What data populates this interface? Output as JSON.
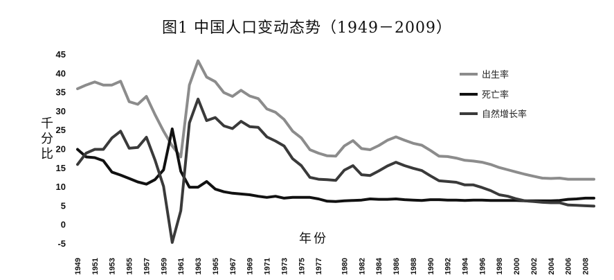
{
  "chart_data": {
    "type": "line",
    "title": "图1  中国人口变动态势（1949－2009）",
    "ylabel": "千分比",
    "xlabel": "年份",
    "ylim": [
      -5,
      45
    ],
    "yticks": [
      -5,
      0,
      5,
      10,
      15,
      20,
      25,
      30,
      35,
      40,
      45
    ],
    "x_tick_labels": [
      "1949",
      "1951",
      "1953",
      "1955",
      "1957",
      "1959",
      "1961",
      "1963",
      "1965",
      "1967",
      "1969",
      "1971",
      "1973",
      "1975",
      "1977",
      "1980",
      "1982",
      "1984",
      "1986",
      "1988",
      "1990",
      "1992",
      "1994",
      "1996",
      "1998",
      "2000",
      "2002",
      "2004",
      "2006",
      "2008"
    ],
    "legend_position": "right",
    "x": [
      1949,
      1950,
      1951,
      1952,
      1953,
      1954,
      1955,
      1956,
      1957,
      1958,
      1959,
      1960,
      1961,
      1962,
      1963,
      1964,
      1965,
      1966,
      1967,
      1968,
      1969,
      1970,
      1971,
      1972,
      1973,
      1974,
      1975,
      1976,
      1977,
      1978,
      1979,
      1980,
      1981,
      1982,
      1983,
      1984,
      1985,
      1986,
      1987,
      1988,
      1989,
      1990,
      1991,
      1992,
      1993,
      1994,
      1995,
      1996,
      1997,
      1998,
      1999,
      2000,
      2001,
      2002,
      2003,
      2004,
      2005,
      2006,
      2007,
      2008,
      2009
    ],
    "series": [
      {
        "name": "出生率",
        "color": "#8c8c8c",
        "values": [
          36,
          37,
          37.8,
          37,
          37,
          38,
          32.6,
          31.9,
          34,
          29.2,
          24.8,
          20.9,
          18,
          37,
          43.4,
          39.1,
          37.9,
          35,
          34,
          35.6,
          34.1,
          33.4,
          30.7,
          29.8,
          27.9,
          24.8,
          23,
          19.9,
          19,
          18.3,
          18.2,
          20.9,
          22.3,
          20.2,
          19.9,
          21,
          22.4,
          23.3,
          22.4,
          21.6,
          21.1,
          19.7,
          18.2,
          18.1,
          17.7,
          17.1,
          16.9,
          16.6,
          16,
          15.2,
          14.6,
          14,
          13.4,
          12.9,
          12.4,
          12.3,
          12.4,
          12.1,
          12.1,
          12.1,
          12.1
        ]
      },
      {
        "name": "死亡率",
        "color": "#111111",
        "values": [
          20,
          18,
          17.8,
          17,
          14,
          13.2,
          12.3,
          11.4,
          10.8,
          12,
          14.6,
          25.4,
          14.2,
          10,
          10,
          11.5,
          9.5,
          8.8,
          8.4,
          8.2,
          8,
          7.6,
          7.3,
          7.6,
          7.1,
          7.3,
          7.3,
          7.3,
          6.9,
          6.3,
          6.2,
          6.4,
          6.5,
          6.6,
          6.9,
          6.8,
          6.8,
          6.9,
          6.7,
          6.6,
          6.5,
          6.7,
          6.7,
          6.6,
          6.6,
          6.5,
          6.6,
          6.6,
          6.5,
          6.5,
          6.5,
          6.5,
          6.4,
          6.4,
          6.4,
          6.4,
          6.5,
          6.8,
          6.9,
          7.1,
          7.1
        ]
      },
      {
        "name": "自然增长率",
        "color": "#3a3a3a",
        "values": [
          16,
          19,
          20,
          20,
          23,
          24.8,
          20.3,
          20.5,
          23.2,
          17.2,
          10.2,
          -4.6,
          3.8,
          27,
          33.3,
          27.6,
          28.4,
          26.2,
          25.5,
          27.4,
          26,
          25.8,
          23.3,
          22.2,
          20.9,
          17.5,
          15.7,
          12.6,
          12.1,
          12,
          11.8,
          14.5,
          15.7,
          13.3,
          13.1,
          14.3,
          15.6,
          16.6,
          15.7,
          15,
          14.4,
          13,
          11.7,
          11.5,
          11.3,
          10.6,
          10.6,
          9.9,
          9.1,
          8,
          7.6,
          6.9,
          6.4,
          6.2,
          6,
          5.9,
          5.9,
          5.3,
          5.2,
          5.1,
          5
        ]
      }
    ]
  }
}
